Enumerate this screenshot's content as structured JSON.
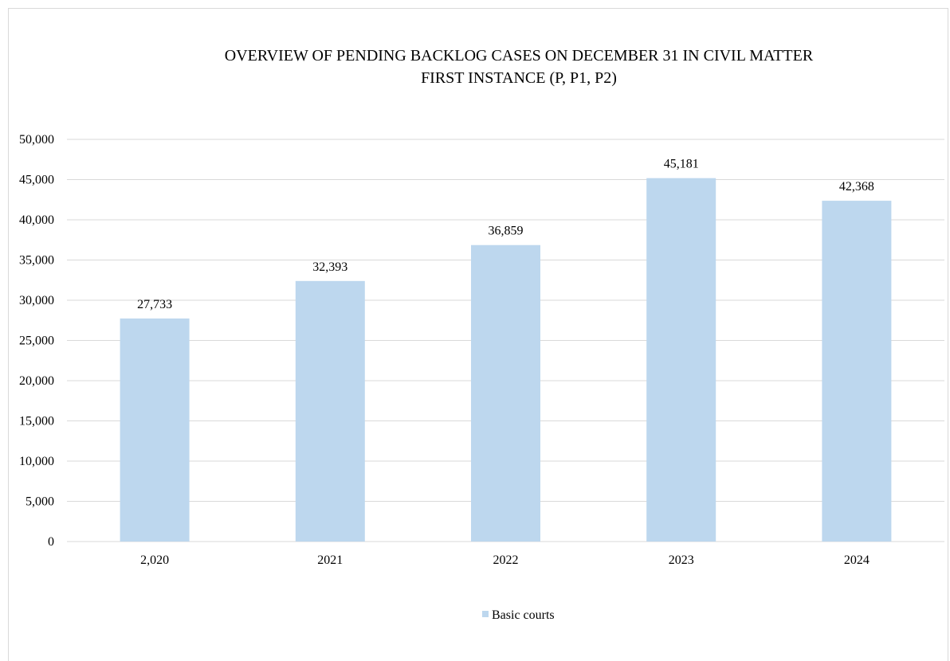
{
  "chart_data": {
    "type": "bar",
    "title": "OVERVIEW OF PENDING BACKLOG CASES ON DECEMBER 31 IN CIVIL MATTER",
    "subtitle": "FIRST INSTANCE (P, P1, P2)",
    "categories": [
      "2,020",
      "2021",
      "2022",
      "2023",
      "2024"
    ],
    "series": [
      {
        "name": "Basic courts",
        "values": [
          27733,
          32393,
          36859,
          45181,
          42368
        ],
        "labels": [
          "27,733",
          "32,393",
          "36,859",
          "45,181",
          "42,368"
        ],
        "color": "#bdd7ee"
      }
    ],
    "ylim": [
      0,
      50000
    ],
    "yticks": [
      "0",
      "5,000",
      "10,000",
      "15,000",
      "20,000",
      "25,000",
      "30,000",
      "35,000",
      "40,000",
      "45,000",
      "50,000"
    ],
    "ytick_values": [
      0,
      5000,
      10000,
      15000,
      20000,
      25000,
      30000,
      35000,
      40000,
      45000,
      50000
    ],
    "grid": true,
    "legend_position": "bottom",
    "gridline_color": "#d9d9d9",
    "axis_color": "#d9d9d9"
  }
}
